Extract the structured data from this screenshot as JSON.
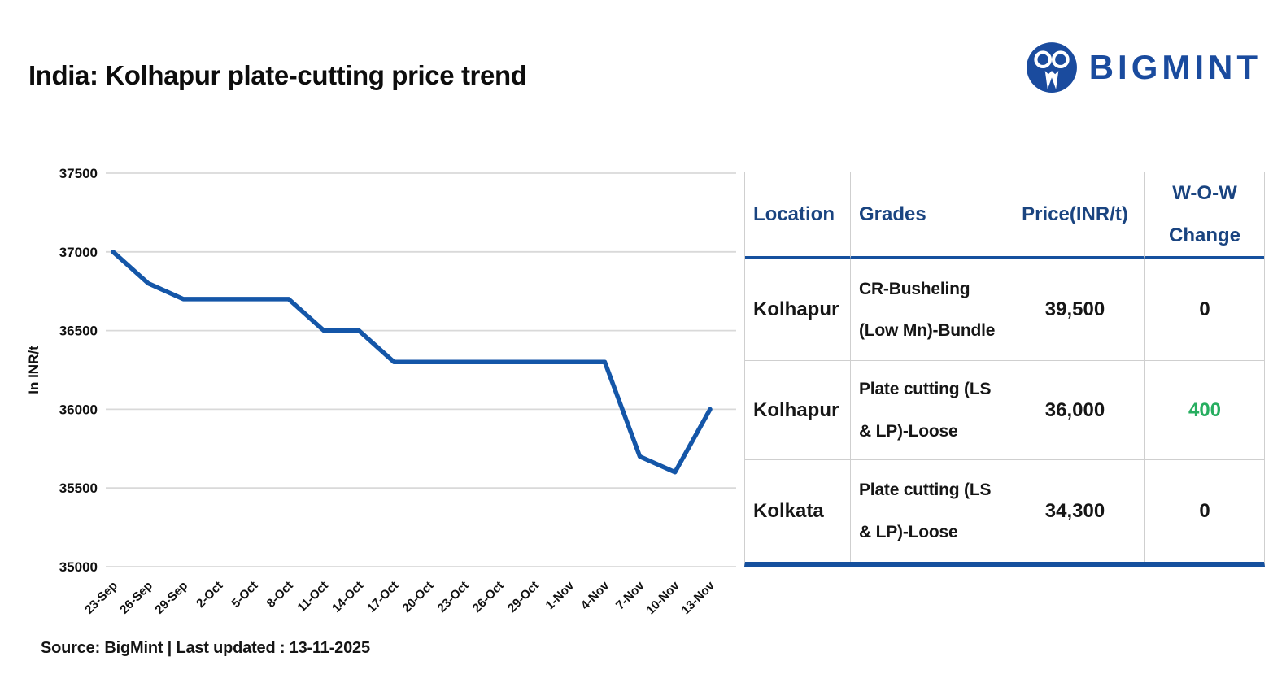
{
  "page": {
    "title": "India: Kolhapur plate-cutting price trend",
    "source_note": "Source: BigMint | Last updated : 13-11-2025"
  },
  "logo": {
    "brand": "BIGMINT"
  },
  "colors": {
    "line_blue": "#1456a8",
    "navy_text": "#1a4480",
    "thick_border_blue": "#15509e",
    "green_change": "#27ae60",
    "black_change": "#161616",
    "grid_gray": "#d9d9d9",
    "logo_blue": "#1a4b9e"
  },
  "chart_data": {
    "type": "line",
    "title": "",
    "xlabel": "",
    "ylabel": "In INR/t",
    "x": [
      "23-Sep",
      "26-Sep",
      "29-Sep",
      "2-Oct",
      "5-Oct",
      "8-Oct",
      "11-Oct",
      "14-Oct",
      "17-Oct",
      "20-Oct",
      "23-Oct",
      "26-Oct",
      "29-Oct",
      "1-Nov",
      "4-Nov",
      "7-Nov",
      "10-Nov",
      "13-Nov"
    ],
    "values": [
      37000,
      36800,
      36700,
      36700,
      36700,
      36700,
      36500,
      36500,
      36300,
      36300,
      36300,
      36300,
      36300,
      36300,
      36300,
      35700,
      35600,
      36000
    ],
    "ylim": [
      35000,
      37500
    ],
    "ytick_step": 500,
    "yticks": [
      35000,
      35500,
      36000,
      36500,
      37000,
      37500
    ],
    "grid": true,
    "legend": "none",
    "line_color": "#1456a8"
  },
  "table": {
    "headers": [
      "Location",
      "Grades",
      "Price(INR/t)",
      "W-O-W Change"
    ],
    "rows": [
      {
        "location": "Kolhapur",
        "grade": "CR-Busheling (Low Mn)-Bundle",
        "price": "39,500",
        "wow": "0",
        "wow_color": "black"
      },
      {
        "location": "Kolhapur",
        "grade": "Plate cutting (LS & LP)-Loose",
        "price": "36,000",
        "wow": "400",
        "wow_color": "green"
      },
      {
        "location": "Kolkata",
        "grade": "Plate cutting (LS & LP)-Loose",
        "price": "34,300",
        "wow": "0",
        "wow_color": "black"
      }
    ]
  }
}
